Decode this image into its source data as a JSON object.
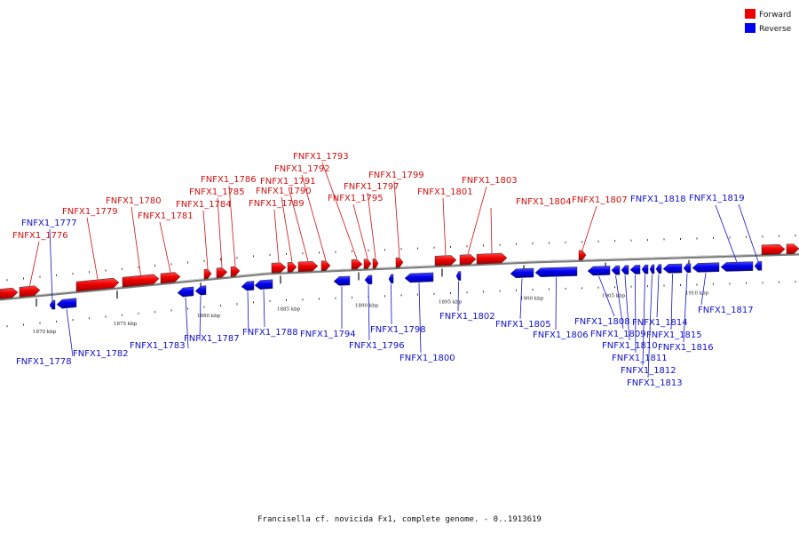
{
  "legend": {
    "forward_label": "Forward",
    "reverse_label": "Reverse",
    "forward_color": "#ee0000",
    "reverse_color": "#0000ee"
  },
  "caption": "Francisella cf. novicida Fx1, complete genome. - 0..1913619",
  "ticks": [
    {
      "kbp": 1870,
      "label": "1870 kbp"
    },
    {
      "kbp": 1875,
      "label": "1875 kbp"
    },
    {
      "kbp": 1880,
      "label": "1880 kbp"
    },
    {
      "kbp": 1885,
      "label": "1885 kbp"
    },
    {
      "kbp": 1890,
      "label": "1890 kbp"
    },
    {
      "kbp": 1895,
      "label": "1895 kbp"
    },
    {
      "kbp": 1900,
      "label": "1900 kbp"
    },
    {
      "kbp": 1905,
      "label": "1905 kbp"
    },
    {
      "kbp": 1910,
      "label": "1910 kbp"
    }
  ],
  "genes_forward": [
    {
      "name": "FNFX1_1776"
    },
    {
      "name": "FNFX1_1779"
    },
    {
      "name": "FNFX1_1780"
    },
    {
      "name": "FNFX1_1781"
    },
    {
      "name": "FNFX1_1784"
    },
    {
      "name": "FNFX1_1785"
    },
    {
      "name": "FNFX1_1786"
    },
    {
      "name": "FNFX1_1789"
    },
    {
      "name": "FNFX1_1790"
    },
    {
      "name": "FNFX1_1791"
    },
    {
      "name": "FNFX1_1792"
    },
    {
      "name": "FNFX1_1793"
    },
    {
      "name": "FNFX1_1795"
    },
    {
      "name": "FNFX1_1797"
    },
    {
      "name": "FNFX1_1799"
    },
    {
      "name": "FNFX1_1801"
    },
    {
      "name": "FNFX1_1803"
    },
    {
      "name": "FNFX1_1804"
    },
    {
      "name": "FNFX1_1807"
    }
  ],
  "genes_reverse": [
    {
      "name": "FNFX1_1777"
    },
    {
      "name": "FNFX1_1778"
    },
    {
      "name": "FNFX1_1782"
    },
    {
      "name": "FNFX1_1783"
    },
    {
      "name": "FNFX1_1787"
    },
    {
      "name": "FNFX1_1788"
    },
    {
      "name": "FNFX1_1794"
    },
    {
      "name": "FNFX1_1796"
    },
    {
      "name": "FNFX1_1798"
    },
    {
      "name": "FNFX1_1800"
    },
    {
      "name": "FNFX1_1802"
    },
    {
      "name": "FNFX1_1805"
    },
    {
      "name": "FNFX1_1806"
    },
    {
      "name": "FNFX1_1808"
    },
    {
      "name": "FNFX1_1809"
    },
    {
      "name": "FNFX1_1810"
    },
    {
      "name": "FNFX1_1811"
    },
    {
      "name": "FNFX1_1812"
    },
    {
      "name": "FNFX1_1813"
    },
    {
      "name": "FNFX1_1814"
    },
    {
      "name": "FNFX1_1815"
    },
    {
      "name": "FNFX1_1816"
    },
    {
      "name": "FNFX1_1817"
    },
    {
      "name": "FNFX1_1818"
    },
    {
      "name": "FNFX1_1819"
    }
  ]
}
